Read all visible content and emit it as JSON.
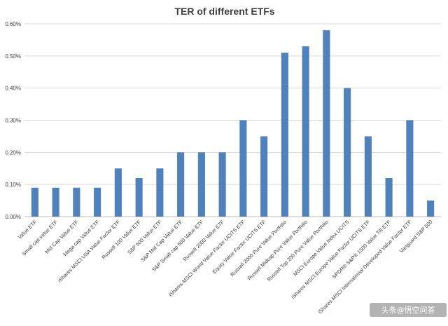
{
  "chart_data": {
    "type": "bar",
    "title": "TER of different ETFs",
    "xlabel": "",
    "ylabel": "",
    "ylim": [
      0,
      0.6
    ],
    "yticks": [
      "0.00%",
      "0.10%",
      "0.20%",
      "0.30%",
      "0.40%",
      "0.50%",
      "0.60%"
    ],
    "grid": true,
    "legend": "none",
    "bar_color": "#4f81bd",
    "categories": [
      "Value ETF",
      "Small cap value ETF",
      "Mid Cap Value ETF",
      "Mega cap Value ETF",
      "iShares MSCI USA Value Factor ETF",
      "Russell 100 Value ETF",
      "S&P 500 Value ETF",
      "S&P Mid Cap Value ETF",
      "S&P Small cap 600 Value ETF",
      "Russell 2000 Value ETF",
      "iShares MSCI World Value Factor UCITS ETF",
      "Equity Value Factor UCITS ETF",
      "Russell 2000 Pure Value Portfolio",
      "Russell Midcap Pure Value Portfolio",
      "Russell Top 200 Pure Value Portfolio",
      "MSCI Europe Value Index UCITS",
      "iShares MSCI Europe Value Factor UCITS ETF",
      "SPDR® S&P® 1500 Value Tilt ETF",
      "iShares MSCI International Developed Value Factor ETF",
      "Vanguard S&P 500"
    ],
    "values": [
      0.09,
      0.09,
      0.09,
      0.09,
      0.15,
      0.12,
      0.15,
      0.2,
      0.2,
      0.2,
      0.3,
      0.25,
      0.51,
      0.53,
      0.58,
      0.4,
      0.25,
      0.12,
      0.3,
      0.05
    ]
  },
  "watermark": "头条@悟空问答"
}
